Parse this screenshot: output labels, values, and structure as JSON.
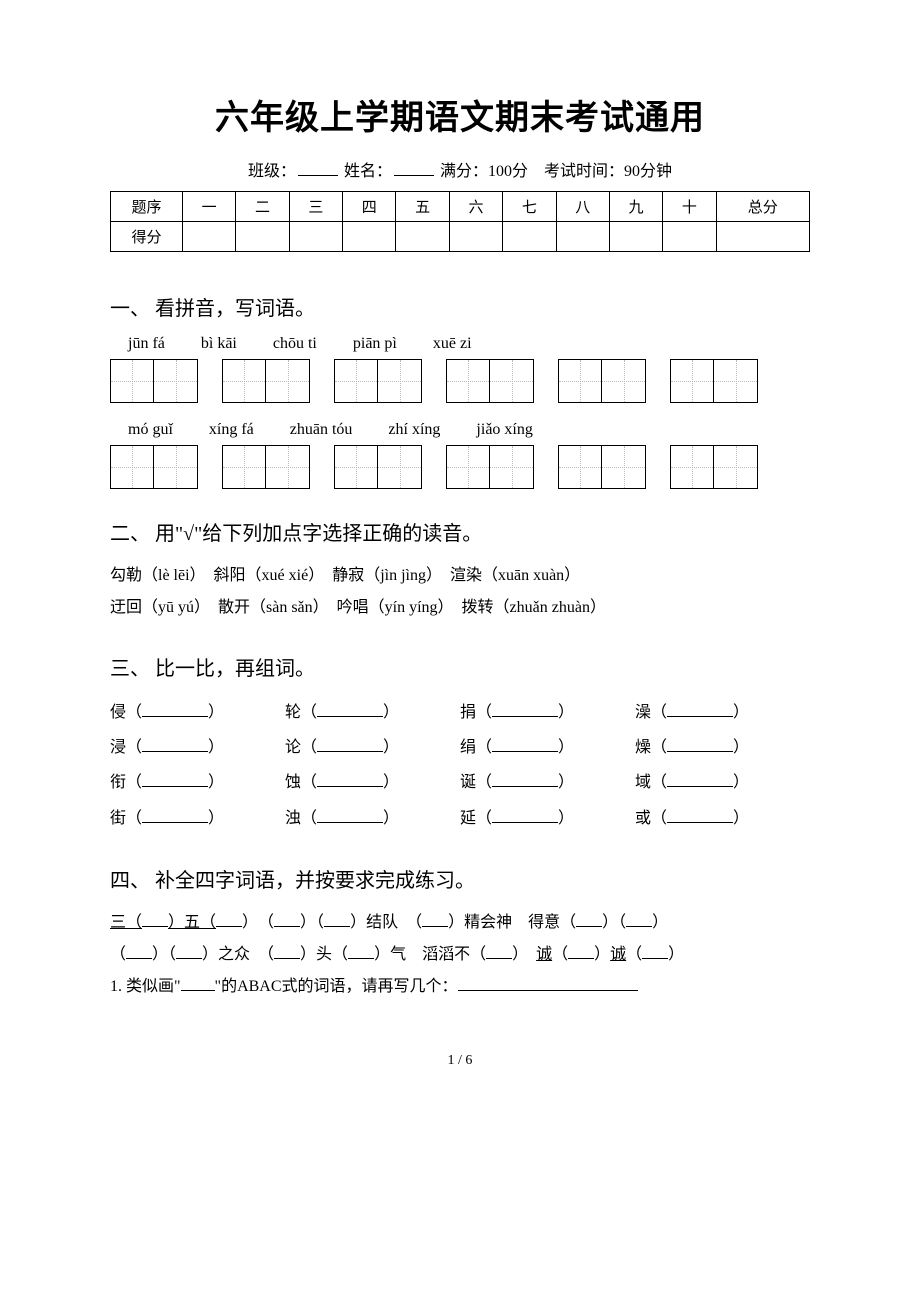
{
  "title": "六年级上学期语文期末考试通用",
  "meta": {
    "class_label": "班级：",
    "name_label": "姓名：",
    "fullscore_label": "满分：100分",
    "time_label": "考试时间：90分钟"
  },
  "score_table": {
    "row1_label": "题序",
    "row2_label": "得分",
    "cols": [
      "一",
      "二",
      "三",
      "四",
      "五",
      "六",
      "七",
      "八",
      "九",
      "十",
      "总分"
    ]
  },
  "section1": {
    "title": "一、 看拼音，写词语。",
    "row1_pinyin": [
      "jūn fá",
      "bì kāi",
      "chōu ti",
      "piān pì",
      "xuē zi"
    ],
    "row2_pinyin": [
      "mó guǐ",
      "xíng fá",
      "zhuān tóu",
      "zhí xíng",
      "jiǎo xíng"
    ]
  },
  "section2": {
    "title": "二、 用\"√\"给下列加点字选择正确的读音。",
    "line1": "勾勒（lè lēi）　斜阳（xué xié）　静寂（jìn jìng）　渲染（xuān xuàn）",
    "line2": "迂回（yū yú）　散开（sàn sǎn）　吟唱（yín yíng）　拨转（zhuǎn zhuàn）"
  },
  "section3": {
    "title": "三、 比一比，再组词。",
    "rows": [
      [
        "侵（",
        "轮（",
        "捐（",
        "澡（"
      ],
      [
        "浸（",
        "论（",
        "绢（",
        "燥（"
      ],
      [
        "衔（",
        "蚀（",
        "诞（",
        "域（"
      ],
      [
        "街（",
        "浊（",
        "延（",
        "或（"
      ]
    ],
    "close": "）"
  },
  "section4": {
    "title": "四、 补全四字词语，并按要求完成练习。",
    "line1_parts": {
      "a": "三（",
      "b": "）五（",
      "c": "）　（",
      "d": "）（",
      "e": "）结队　（",
      "f": "）精会神　得意（",
      "g": "）（",
      "h": "）"
    },
    "line2_parts": {
      "a": "（",
      "b": "）（",
      "c": "）之众　（",
      "d": "）头（",
      "e": "）气　滔滔不（",
      "f": "）　",
      "g": "诚",
      "h": "（",
      "i": "）",
      "j": "诚",
      "k": "（",
      "l": "）"
    },
    "q1_a": "1. 类似画\"",
    "q1_b": "\"的ABAC式的词语，请再写几个："
  },
  "footer": "1 / 6"
}
